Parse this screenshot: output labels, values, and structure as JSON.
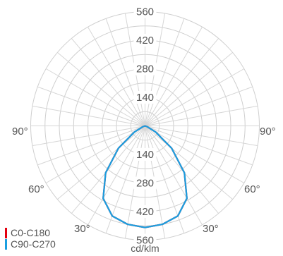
{
  "chart_data": {
    "type": "polar",
    "radial_axis": {
      "unit": "cd/klm",
      "ticks": [
        140,
        280,
        420,
        560
      ],
      "range": [
        0,
        560
      ]
    },
    "angle_labels": {
      "upper_left": "90°",
      "upper_right": "90°",
      "mid_left": "60°",
      "mid_right": "60°",
      "lower_left": "30°",
      "lower_right": "30°"
    },
    "series": [
      {
        "name": "C0-C180",
        "color": "#e3000f",
        "points": [
          {
            "angle": 0,
            "value": 498
          },
          {
            "angle": 10,
            "value": 490
          },
          {
            "angle": 20,
            "value": 470
          },
          {
            "angle": 30,
            "value": 410
          },
          {
            "angle": 40,
            "value": 300
          },
          {
            "angle": 50,
            "value": 170
          },
          {
            "angle": 60,
            "value": 60
          },
          {
            "angle": 70,
            "value": 10
          },
          {
            "angle": 80,
            "value": 0
          },
          {
            "angle": 90,
            "value": 0
          }
        ]
      },
      {
        "name": "C90-C270",
        "color": "#1a9fe0",
        "points": [
          {
            "angle": 0,
            "value": 498
          },
          {
            "angle": 10,
            "value": 490
          },
          {
            "angle": 20,
            "value": 470
          },
          {
            "angle": 30,
            "value": 410
          },
          {
            "angle": 40,
            "value": 300
          },
          {
            "angle": 50,
            "value": 170
          },
          {
            "angle": 60,
            "value": 60
          },
          {
            "angle": 70,
            "value": 10
          },
          {
            "angle": 80,
            "value": 0
          },
          {
            "angle": 90,
            "value": 0
          }
        ]
      }
    ],
    "grid": true,
    "legend": "bottom-left"
  }
}
